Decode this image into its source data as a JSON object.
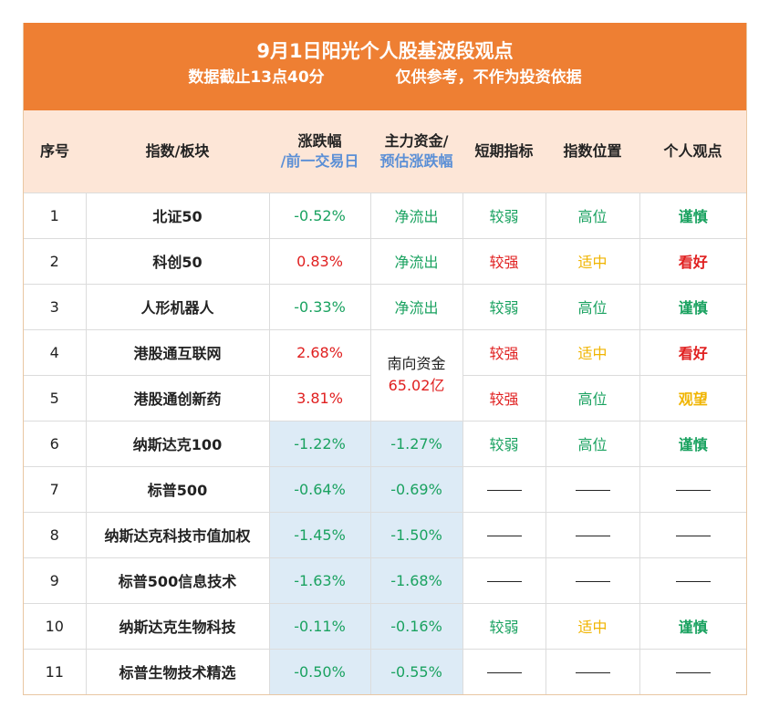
{
  "title": "9月1日阳光个人股基波段观点",
  "subtitle_left": "数据截止13点40分",
  "subtitle_right": "仅供参考，不作为投资依据",
  "headers": {
    "seq": "序号",
    "index": "指数/板块",
    "change": "涨跌幅",
    "change_sub": "/前一交易日",
    "capital": "主力资金/",
    "capital_sub": "预估涨跌幅",
    "short_term": "短期指标",
    "position": "指数位置",
    "view": "个人观点"
  },
  "merged_capital": {
    "label": "南向资金",
    "value": "65.02亿"
  },
  "dash": "——",
  "rows": [
    {
      "seq": "1",
      "name": "北证50",
      "change": "-0.52%",
      "change_color": "g",
      "capital": "净流出",
      "capital_color": "g",
      "short": "较弱",
      "short_color": "g",
      "position": "高位",
      "position_color": "g",
      "view": "谨慎",
      "view_color": "g"
    },
    {
      "seq": "2",
      "name": "科创50",
      "change": "0.83%",
      "change_color": "r",
      "capital": "净流出",
      "capital_color": "g",
      "short": "较强",
      "short_color": "r",
      "position": "适中",
      "position_color": "y",
      "view": "看好",
      "view_color": "r"
    },
    {
      "seq": "3",
      "name": "人形机器人",
      "change": "-0.33%",
      "change_color": "g",
      "capital": "净流出",
      "capital_color": "g",
      "short": "较弱",
      "short_color": "g",
      "position": "高位",
      "position_color": "g",
      "view": "谨慎",
      "view_color": "g"
    },
    {
      "seq": "4",
      "name": "港股通互联网",
      "change": "2.68%",
      "change_color": "r",
      "capital": null,
      "short": "较强",
      "short_color": "r",
      "position": "适中",
      "position_color": "y",
      "view": "看好",
      "view_color": "r"
    },
    {
      "seq": "5",
      "name": "港股通创新药",
      "change": "3.81%",
      "change_color": "r",
      "capital": null,
      "short": "较强",
      "short_color": "r",
      "position": "高位",
      "position_color": "g",
      "view": "观望",
      "view_color": "y"
    },
    {
      "seq": "6",
      "name": "纳斯达克100",
      "change": "-1.22%",
      "change_color": "g",
      "capital": "-1.27%",
      "capital_color": "g",
      "short": "较弱",
      "short_color": "g",
      "position": "高位",
      "position_color": "g",
      "view": "谨慎",
      "view_color": "g"
    },
    {
      "seq": "7",
      "name": "标普500",
      "change": "-0.64%",
      "change_color": "g",
      "capital": "-0.69%",
      "capital_color": "g",
      "short": null,
      "position": null,
      "view": null
    },
    {
      "seq": "8",
      "name": "纳斯达克科技市值加权",
      "change": "-1.45%",
      "change_color": "g",
      "capital": "-1.50%",
      "capital_color": "g",
      "short": null,
      "position": null,
      "view": null
    },
    {
      "seq": "9",
      "name": "标普500信息技术",
      "change": "-1.63%",
      "change_color": "g",
      "capital": "-1.68%",
      "capital_color": "g",
      "short": null,
      "position": null,
      "view": null
    },
    {
      "seq": "10",
      "name": "纳斯达克生物科技",
      "change": "-0.11%",
      "change_color": "g",
      "capital": "-0.16%",
      "capital_color": "g",
      "short": "较弱",
      "short_color": "g",
      "position": "适中",
      "position_color": "y",
      "view": "谨慎",
      "view_color": "g"
    },
    {
      "seq": "11",
      "name": "标普生物技术精选",
      "change": "-0.50%",
      "change_color": "g",
      "capital": "-0.55%",
      "capital_color": "g",
      "short": null,
      "position": null,
      "view": null
    }
  ]
}
